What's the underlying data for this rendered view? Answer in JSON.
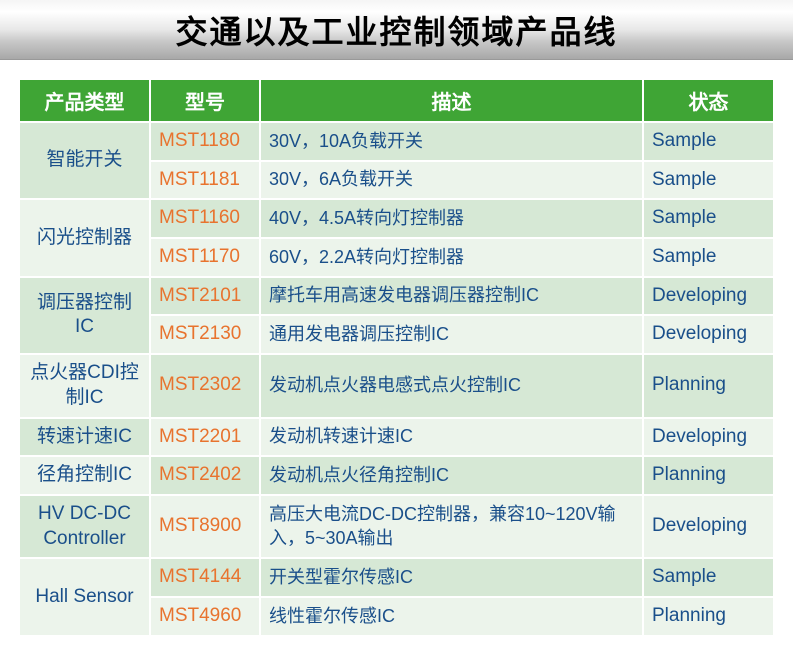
{
  "title": "交通以及工业控制领域产品线",
  "colors": {
    "header_bg": "#3fa535",
    "header_text": "#ffffff",
    "row_alt_a": "#d6e8d5",
    "row_alt_b": "#ecf4eb",
    "model_color": "#e8732e",
    "text_color": "#1a4f8a",
    "title_color": "#000000"
  },
  "columns": [
    "产品类型",
    "型号",
    "描述",
    "状态"
  ],
  "groups": [
    {
      "category": "智能开关",
      "shade": "a",
      "rows": [
        {
          "model": "MST1180",
          "desc": "30V，10A负载开关",
          "status": "Sample"
        },
        {
          "model": "MST1181",
          "desc": "30V，6A负载开关",
          "status": "Sample"
        }
      ]
    },
    {
      "category": "闪光控制器",
      "shade": "b",
      "rows": [
        {
          "model": "MST1160",
          "desc": "40V，4.5A转向灯控制器",
          "status": "Sample"
        },
        {
          "model": "MST1170",
          "desc": "60V，2.2A转向灯控制器",
          "status": "Sample"
        }
      ]
    },
    {
      "category": "调压器控制IC",
      "shade": "a",
      "rows": [
        {
          "model": "MST2101",
          "desc": "摩托车用高速发电器调压器控制IC",
          "status": "Developing"
        },
        {
          "model": "MST2130",
          "desc": "通用发电器调压控制IC",
          "status": "Developing"
        }
      ]
    },
    {
      "category": "点火器CDI控制IC",
      "shade": "b",
      "rows": [
        {
          "model": "MST2302",
          "desc": "发动机点火器电感式点火控制IC",
          "status": "Planning"
        }
      ]
    },
    {
      "category": "转速计速IC",
      "shade": "a",
      "rows": [
        {
          "model": "MST2201",
          "desc": "发动机转速计速IC",
          "status": "Developing"
        }
      ]
    },
    {
      "category": "径角控制IC",
      "shade": "b",
      "rows": [
        {
          "model": "MST2402",
          "desc": "发动机点火径角控制IC",
          "status": "Planning"
        }
      ]
    },
    {
      "category": "HV DC-DC Controller",
      "shade": "a",
      "rows": [
        {
          "model": "MST8900",
          "desc": "高压大电流DC-DC控制器，兼容10~120V输入，5~30A输出",
          "status": "Developing"
        }
      ]
    },
    {
      "category": "Hall Sensor",
      "shade": "b",
      "rows": [
        {
          "model": "MST4144",
          "desc": "开关型霍尔传感IC",
          "status": "Sample"
        },
        {
          "model": "MST4960",
          "desc": "线性霍尔传感IC",
          "status": "Planning"
        }
      ]
    }
  ]
}
